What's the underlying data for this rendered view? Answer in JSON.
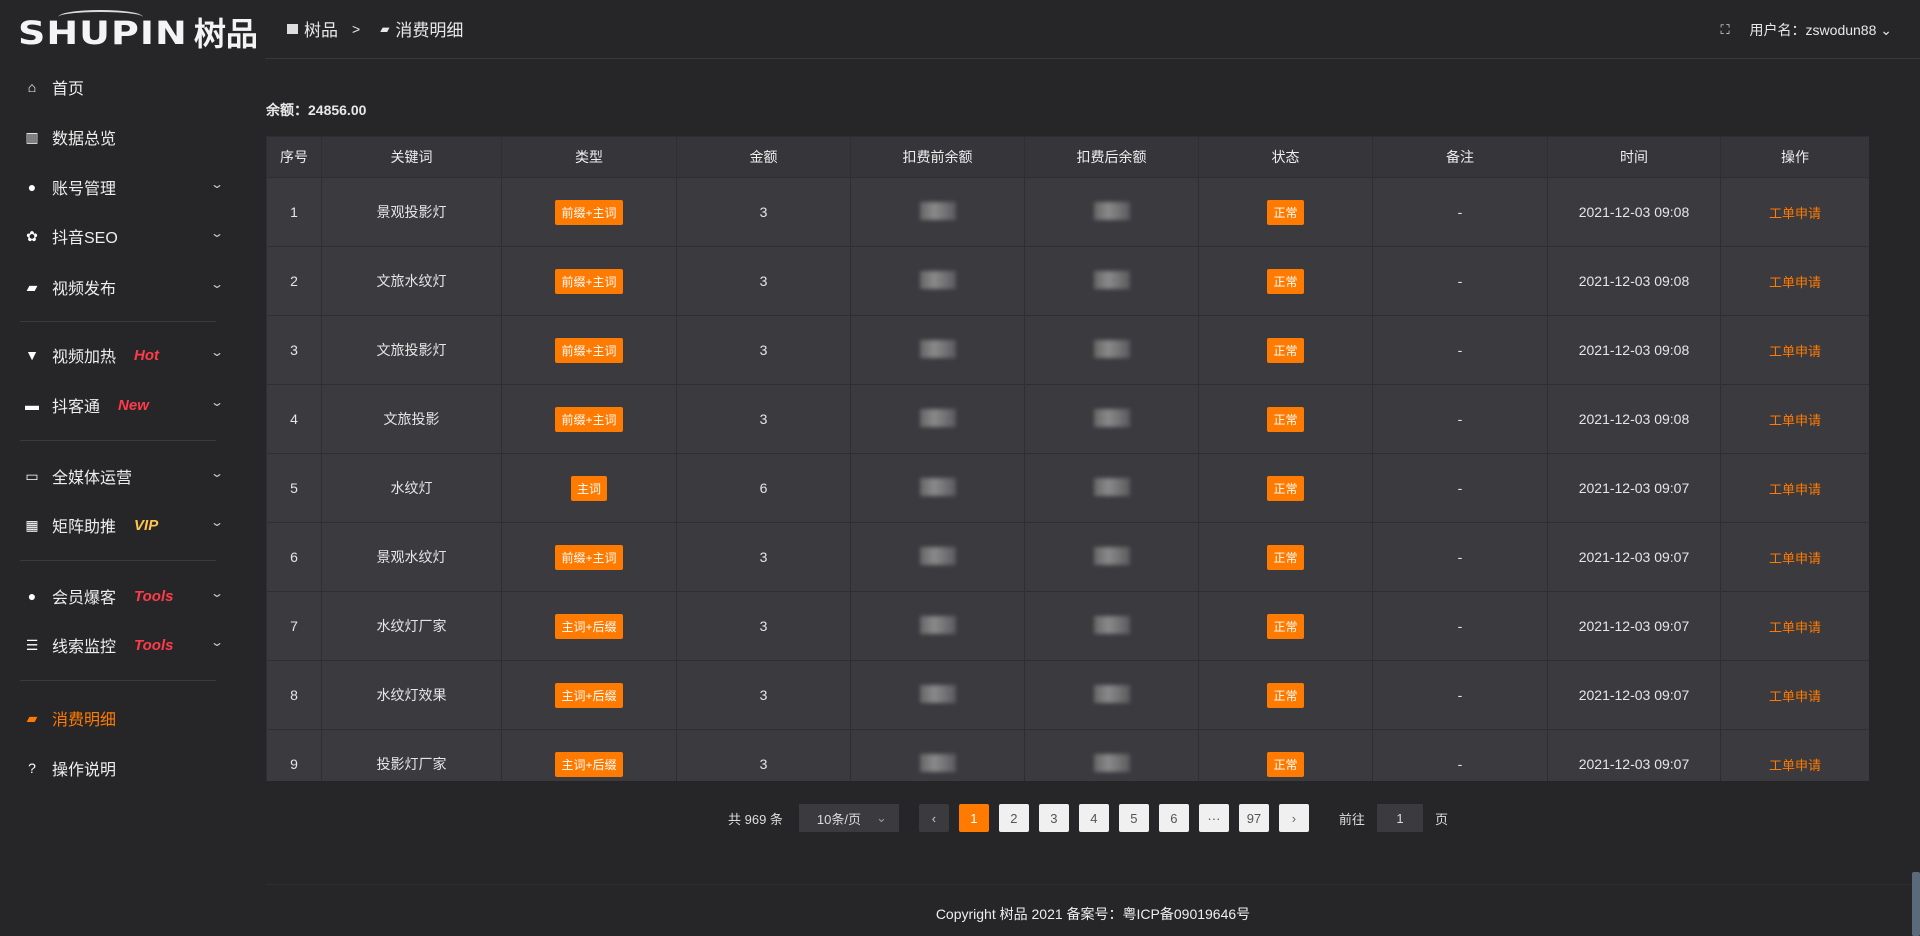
{
  "logo": {
    "en": "SHUPIN",
    "cn": "树品"
  },
  "breadcrumb": {
    "home": "树品",
    "sep": ">",
    "current": "消费明细"
  },
  "user": {
    "label": "用户名：zswodun88"
  },
  "sidebar": {
    "items": [
      {
        "label": "首页",
        "icon": "home-icon"
      },
      {
        "label": "数据总览",
        "icon": "bar-chart-icon"
      },
      {
        "label": "账号管理",
        "icon": "user-icon"
      },
      {
        "label": "抖音SEO",
        "icon": "gear-icon"
      },
      {
        "label": "视频发布",
        "icon": "camera-icon"
      },
      {
        "label": "视频加热",
        "icon": "flame-icon",
        "tag": "Hot"
      },
      {
        "label": "抖客通",
        "icon": "chat-icon",
        "tag": "New"
      },
      {
        "label": "全媒体运营",
        "icon": "monitor-icon"
      },
      {
        "label": "矩阵助推",
        "icon": "grid-icon",
        "tag": "VIP"
      },
      {
        "label": "会员爆客",
        "icon": "user-icon",
        "tag": "Tools"
      },
      {
        "label": "线索监控",
        "icon": "sliders-icon",
        "tag": "Tools"
      },
      {
        "label": "消费明细",
        "icon": "wallet-icon",
        "active": true
      },
      {
        "label": "操作说明",
        "icon": "help-icon"
      }
    ]
  },
  "balance": "余额：24856.00",
  "table": {
    "headers": [
      "序号",
      "关键词",
      "类型",
      "金额",
      "扣费前余额",
      "扣费后余额",
      "状态",
      "备注",
      "时间",
      "操作"
    ],
    "rows": [
      [
        "1",
        "景观投影灯",
        "前缀+主词",
        "3",
        "",
        "",
        "正常",
        "-",
        "2021-12-03 09:08",
        "工单申请"
      ],
      [
        "2",
        "文旅水纹灯",
        "前缀+主词",
        "3",
        "",
        "",
        "正常",
        "-",
        "2021-12-03 09:08",
        "工单申请"
      ],
      [
        "3",
        "文旅投影灯",
        "前缀+主词",
        "3",
        "",
        "",
        "正常",
        "-",
        "2021-12-03 09:08",
        "工单申请"
      ],
      [
        "4",
        "文旅投影",
        "前缀+主词",
        "3",
        "",
        "",
        "正常",
        "-",
        "2021-12-03 09:08",
        "工单申请"
      ],
      [
        "5",
        "水纹灯",
        "主词",
        "6",
        "",
        "",
        "正常",
        "-",
        "2021-12-03 09:07",
        "工单申请"
      ],
      [
        "6",
        "景观水纹灯",
        "前缀+主词",
        "3",
        "",
        "",
        "正常",
        "-",
        "2021-12-03 09:07",
        "工单申请"
      ],
      [
        "7",
        "水纹灯厂家",
        "主词+后缀",
        "3",
        "",
        "",
        "正常",
        "-",
        "2021-12-03 09:07",
        "工单申请"
      ],
      [
        "8",
        "水纹灯效果",
        "主词+后缀",
        "3",
        "",
        "",
        "正常",
        "-",
        "2021-12-03 09:07",
        "工单申请"
      ],
      [
        "9",
        "投影灯厂家",
        "主词+后缀",
        "3",
        "",
        "",
        "正常",
        "-",
        "2021-12-03 09:07",
        "工单申请"
      ]
    ]
  },
  "pagination": {
    "total": "共 969 条",
    "page_size": "10条/页",
    "pages": [
      "1",
      "2",
      "3",
      "4",
      "5",
      "6",
      "···",
      "97"
    ],
    "current": "1",
    "goto_label": "前往",
    "goto_value": "1",
    "page_suffix": "页"
  },
  "footer": "Copyright 树品 2021 备案号：粤ICP备09019646号",
  "colors": {
    "accent": "#ff7a00",
    "hot": "#ff3b4a",
    "vip": "#ffc44d"
  }
}
